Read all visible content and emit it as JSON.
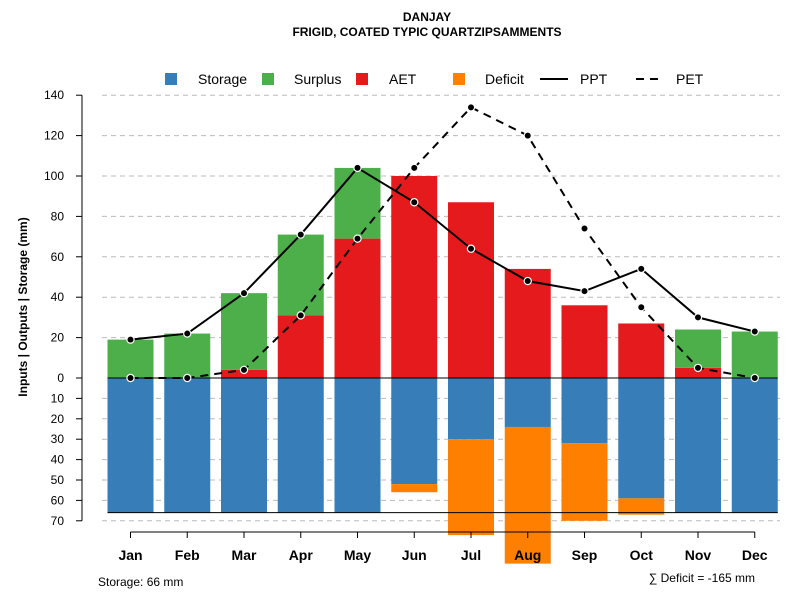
{
  "chart_data": {
    "type": "bar",
    "title": "DANJAY",
    "subtitle": "FRIGID, COATED TYPIC QUARTZIPSAMMENTS",
    "ylabel": "Inputs | Outputs | Storage    (mm)",
    "categories": [
      "Jan",
      "Feb",
      "Mar",
      "Apr",
      "May",
      "Jun",
      "Jul",
      "Aug",
      "Sep",
      "Oct",
      "Nov",
      "Dec"
    ],
    "upper_ylim": [
      0,
      140
    ],
    "upper_ticks": [
      0,
      20,
      40,
      60,
      80,
      100,
      120,
      140
    ],
    "lower_ylim": [
      0,
      70
    ],
    "lower_ticks": [
      10,
      20,
      30,
      40,
      50,
      60,
      70
    ],
    "grid": true,
    "legend_position": "top",
    "legend": [
      {
        "key": "storage",
        "label": "Storage",
        "kind": "box"
      },
      {
        "key": "surplus",
        "label": "Surplus",
        "kind": "box"
      },
      {
        "key": "aet",
        "label": "AET",
        "kind": "box"
      },
      {
        "key": "deficit",
        "label": "Deficit",
        "kind": "box"
      },
      {
        "key": "ppt",
        "label": "PPT",
        "kind": "solid-line"
      },
      {
        "key": "pet",
        "label": "PET",
        "kind": "dashed-line"
      }
    ],
    "colors": {
      "storage": "#377EB8",
      "surplus": "#4DAF4A",
      "aet": "#E41A1C",
      "deficit": "#FF7F00",
      "ppt": "#000000",
      "pet": "#000000",
      "grid": "#bbbbbb"
    },
    "series": [
      {
        "name": "AET",
        "values": [
          0,
          0,
          4,
          31,
          69,
          100,
          87,
          54,
          36,
          27,
          5,
          0
        ]
      },
      {
        "name": "Surplus",
        "values": [
          19,
          22,
          38,
          40,
          35,
          0,
          0,
          0,
          0,
          0,
          19,
          23
        ]
      },
      {
        "name": "Storage",
        "values": [
          66,
          66,
          66,
          66,
          66,
          52,
          30,
          24,
          32,
          59,
          66,
          66
        ]
      },
      {
        "name": "Deficit",
        "values": [
          0,
          0,
          0,
          0,
          0,
          4,
          47,
          67,
          38,
          8,
          0,
          0
        ]
      },
      {
        "name": "PPT",
        "values": [
          19,
          22,
          42,
          71,
          104,
          87,
          64,
          48,
          43,
          54,
          30,
          23
        ]
      },
      {
        "name": "PET",
        "values": [
          0,
          0,
          4,
          31,
          69,
          104,
          134,
          120,
          74,
          35,
          5,
          0
        ]
      }
    ],
    "storage_capacity": 66,
    "storage_note": "Storage: 66 mm",
    "deficit_note": "∑ Deficit = -165 mm"
  }
}
